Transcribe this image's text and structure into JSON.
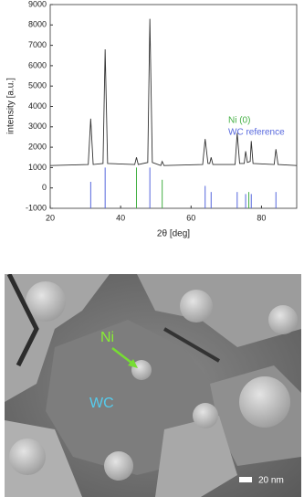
{
  "chart_data": {
    "type": "line",
    "xlabel": "2θ [deg]",
    "ylabel": "intensity [a.u.]",
    "xlim": [
      20,
      90
    ],
    "xticks": [
      20,
      40,
      60,
      80
    ],
    "ylim": [
      -1000,
      9000
    ],
    "yticks": [
      -1000,
      0,
      1000,
      2000,
      3000,
      4000,
      5000,
      6000,
      7000,
      8000,
      9000
    ],
    "series": [
      {
        "kind": "line",
        "color": "#333333",
        "x": [
          20,
          30.8,
          31.5,
          32.2,
          35,
          35.6,
          36.3,
          44,
          44.5,
          45,
          47.7,
          48.3,
          49,
          51.4,
          51.8,
          52.3,
          63.3,
          64,
          64.8,
          65.3,
          65.7,
          66.2,
          72.5,
          73.1,
          73.8,
          75.1,
          75.5,
          76,
          76.8,
          77.1,
          77.6,
          83.6,
          84.1,
          84.7,
          90
        ],
        "values": [
          1100,
          1150,
          3400,
          1150,
          1200,
          6800,
          1200,
          1150,
          1500,
          1150,
          1250,
          8300,
          1250,
          1100,
          1300,
          1100,
          1150,
          2400,
          1200,
          1200,
          1500,
          1150,
          1150,
          2700,
          1200,
          1200,
          1800,
          1250,
          1300,
          2300,
          1200,
          1150,
          1900,
          1150,
          1100
        ]
      },
      {
        "kind": "stem",
        "name": "Ni (0)",
        "color": "#44b044",
        "x": [
          44.5,
          51.8,
          76.4
        ],
        "values": [
          1000,
          400,
          -200
        ]
      },
      {
        "kind": "stem",
        "name": "WC reference",
        "color": "#5566dd",
        "x": [
          31.5,
          35.6,
          48.3,
          64,
          65.7,
          73.1,
          75.5,
          77.1,
          84.1
        ],
        "values": [
          300,
          1000,
          1000,
          100,
          -200,
          -200,
          -300,
          -300,
          -200
        ]
      }
    ]
  },
  "image": {
    "labels": [
      "Ni",
      "WC"
    ],
    "scale_bar": "20 nm"
  }
}
